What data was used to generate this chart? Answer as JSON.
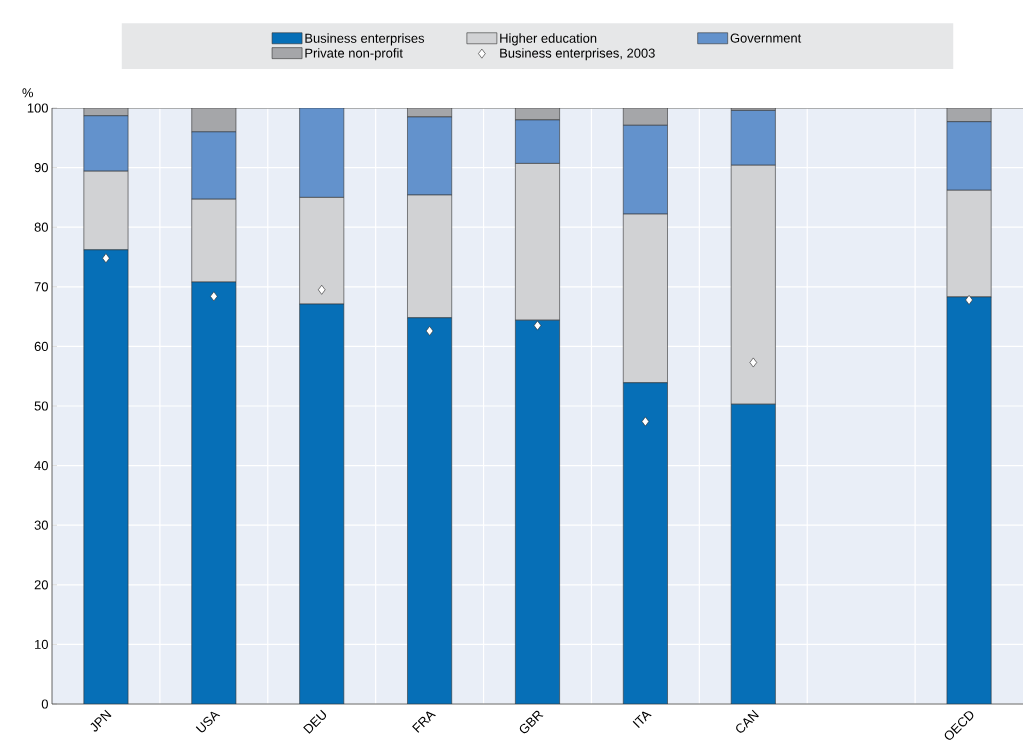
{
  "chart_data": {
    "type": "bar",
    "stacked": true,
    "ylabel": "%",
    "ylim": [
      0,
      100
    ],
    "yticks": [
      0,
      10,
      20,
      30,
      40,
      50,
      60,
      70,
      80,
      90,
      100
    ],
    "grid": true,
    "legend": "top",
    "categories": [
      "JPN",
      "USA",
      "DEU",
      "FRA",
      "GBR",
      "ITA",
      "CAN",
      null,
      "OECD"
    ],
    "series": [
      {
        "name": "Business enterprises",
        "color": "#066fb7",
        "values": [
          76.2,
          70.8,
          67.1,
          64.8,
          64.4,
          53.9,
          50.3,
          null,
          68.3
        ]
      },
      {
        "name": "Higher education",
        "color": "#d1d2d4",
        "values": [
          13.2,
          13.9,
          17.9,
          20.6,
          26.3,
          28.3,
          40.1,
          null,
          17.9
        ]
      },
      {
        "name": "Government",
        "color": "#6392cc",
        "values": [
          9.3,
          11.3,
          15.0,
          13.1,
          7.3,
          14.9,
          9.2,
          null,
          11.5
        ]
      },
      {
        "name": "Private non-profit",
        "color": "#a5a6a9",
        "values": [
          1.3,
          4.0,
          0,
          1.5,
          2.0,
          2.9,
          0.4,
          null,
          2.3
        ]
      },
      {
        "name": "Business enterprises, 2003",
        "type": "scatter",
        "marker": "diamond",
        "color": "#ffffff",
        "values": [
          74.8,
          68.4,
          69.5,
          62.6,
          63.5,
          47.4,
          57.3,
          null,
          67.8
        ]
      }
    ]
  }
}
